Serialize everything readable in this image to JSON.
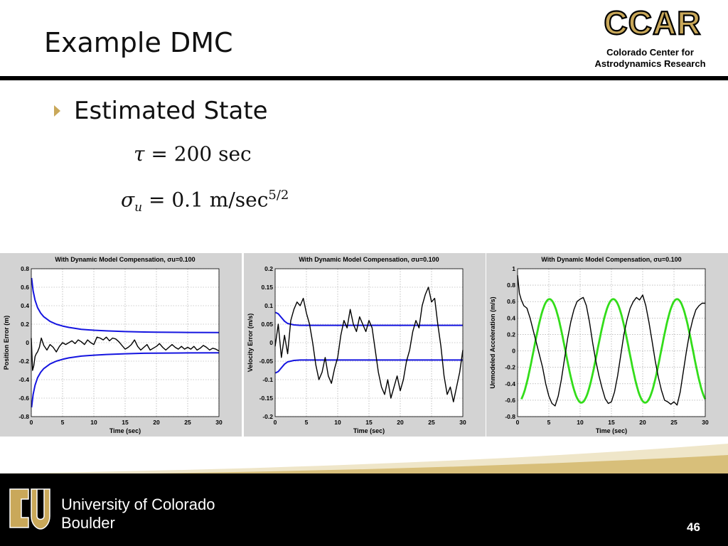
{
  "slide": {
    "title": "Example DMC",
    "bullet": "Estimated State",
    "page_number": "46"
  },
  "equations": {
    "tau": {
      "symbol": "τ",
      "rhs": "= 200 sec"
    },
    "sigma": {
      "symbol": "σ",
      "subscript": "u",
      "rhs": "= 0.1 m/sec",
      "exponent": "5/2"
    }
  },
  "header_logo": {
    "text": "CCAR",
    "line1": "Colorado Center for",
    "line2": "Astrodynamics Research"
  },
  "footer": {
    "line1": "University of Colorado",
    "line2": "Boulder"
  },
  "colors": {
    "title_rule": "#000000",
    "bullet_arrow": "#c9a85a",
    "logo_gold": "#c9a85a",
    "panel_bg": "#d3d3d3",
    "covariance_blue": "#1515e0",
    "truth_green": "#33dd1a",
    "error_black": "#000000"
  },
  "chart_data": [
    {
      "type": "line",
      "title": "With Dynamic Model Compensation,  σu=0.100",
      "xlabel": "Time (sec)",
      "ylabel": "Position Error (m)",
      "xlim": [
        0,
        30
      ],
      "ylim": [
        -0.8,
        0.8
      ],
      "xticks": [
        0,
        5,
        10,
        15,
        20,
        25,
        30
      ],
      "yticks": [
        -0.8,
        -0.6,
        -0.4,
        -0.2,
        0,
        0.2,
        0.4,
        0.6,
        0.8
      ],
      "grid": true,
      "series": [
        {
          "role": "upper-bound",
          "color": "#1515e0",
          "x": [
            0.05,
            0.3,
            0.6,
            1,
            1.5,
            2,
            3,
            4,
            5,
            6,
            8,
            10,
            12,
            15,
            18,
            20,
            25,
            30
          ],
          "y": [
            0.7,
            0.56,
            0.46,
            0.38,
            0.32,
            0.28,
            0.23,
            0.2,
            0.18,
            0.165,
            0.145,
            0.135,
            0.128,
            0.12,
            0.115,
            0.113,
            0.111,
            0.11
          ]
        },
        {
          "role": "lower-bound",
          "color": "#1515e0",
          "x": [
            0.05,
            0.3,
            0.6,
            1,
            1.5,
            2,
            3,
            4,
            5,
            6,
            8,
            10,
            12,
            15,
            18,
            20,
            25,
            30
          ],
          "y": [
            -0.7,
            -0.56,
            -0.46,
            -0.38,
            -0.32,
            -0.28,
            -0.23,
            -0.2,
            -0.18,
            -0.165,
            -0.145,
            -0.135,
            -0.128,
            -0.12,
            -0.115,
            -0.113,
            -0.111,
            -0.11
          ]
        },
        {
          "role": "estimate-error",
          "color": "#000000",
          "x": [
            0,
            0.2,
            0.4,
            0.6,
            0.8,
            1,
            1.3,
            1.6,
            2,
            2.5,
            3,
            3.5,
            4,
            4.5,
            5,
            5.5,
            6,
            6.5,
            7,
            7.5,
            8,
            8.5,
            9,
            9.5,
            10,
            10.5,
            11,
            11.5,
            12,
            12.5,
            13,
            13.5,
            14,
            14.5,
            15,
            15.5,
            16,
            16.5,
            17,
            17.5,
            18,
            18.5,
            19,
            19.5,
            20,
            20.5,
            21,
            21.5,
            22,
            22.5,
            23,
            23.5,
            24,
            24.5,
            25,
            25.5,
            26,
            26.5,
            27,
            27.5,
            28,
            28.5,
            29,
            29.5,
            30
          ],
          "y": [
            0.05,
            -0.3,
            -0.25,
            -0.15,
            -0.12,
            -0.1,
            -0.05,
            0.05,
            -0.03,
            -0.08,
            -0.02,
            -0.05,
            -0.1,
            -0.04,
            0,
            -0.02,
            0,
            0.02,
            -0.01,
            0.03,
            0.01,
            -0.02,
            0.03,
            0,
            -0.02,
            0.06,
            0.05,
            0.03,
            0.06,
            0.02,
            0.05,
            0.04,
            0.01,
            -0.03,
            -0.07,
            -0.05,
            -0.02,
            0.03,
            -0.04,
            -0.08,
            -0.05,
            -0.02,
            -0.08,
            -0.06,
            -0.04,
            -0.01,
            -0.05,
            -0.08,
            -0.05,
            -0.02,
            -0.05,
            -0.07,
            -0.04,
            -0.07,
            -0.05,
            -0.07,
            -0.04,
            -0.08,
            -0.06,
            -0.03,
            -0.05,
            -0.08,
            -0.06,
            -0.07,
            -0.09
          ]
        }
      ]
    },
    {
      "type": "line",
      "title": "With Dynamic Model Compensation,  σu=0.100",
      "xlabel": "Time (sec)",
      "ylabel": "Velocity Error (m/s)",
      "xlim": [
        0,
        30
      ],
      "ylim": [
        -0.2,
        0.2
      ],
      "xticks": [
        0,
        5,
        10,
        15,
        20,
        25,
        30
      ],
      "yticks": [
        -0.2,
        -0.15,
        -0.1,
        -0.05,
        0,
        0.05,
        0.1,
        0.15,
        0.2
      ],
      "grid": true,
      "series": [
        {
          "role": "upper-bound",
          "color": "#1515e0",
          "x": [
            0.05,
            0.5,
            1,
            1.5,
            2,
            3,
            4,
            5,
            7,
            10,
            15,
            20,
            25,
            30
          ],
          "y": [
            0.082,
            0.078,
            0.068,
            0.058,
            0.052,
            0.048,
            0.047,
            0.047,
            0.047,
            0.047,
            0.047,
            0.047,
            0.047,
            0.047
          ]
        },
        {
          "role": "lower-bound",
          "color": "#1515e0",
          "x": [
            0.05,
            0.5,
            1,
            1.5,
            2,
            3,
            4,
            5,
            7,
            10,
            15,
            20,
            25,
            30
          ],
          "y": [
            -0.082,
            -0.078,
            -0.068,
            -0.058,
            -0.052,
            -0.048,
            -0.047,
            -0.047,
            -0.047,
            -0.047,
            -0.047,
            -0.047,
            -0.047,
            -0.047
          ]
        },
        {
          "role": "estimate-error",
          "color": "#000000",
          "x": [
            0,
            0.5,
            1,
            1.5,
            2,
            2.5,
            3,
            3.5,
            4,
            4.5,
            5,
            5.5,
            6,
            6.5,
            7,
            7.5,
            8,
            8.5,
            9,
            9.5,
            10,
            10.5,
            11,
            11.5,
            12,
            12.5,
            13,
            13.5,
            14,
            14.5,
            15,
            15.5,
            16,
            16.5,
            17,
            17.5,
            18,
            18.5,
            19,
            19.5,
            20,
            20.5,
            21,
            21.5,
            22,
            22.5,
            23,
            23.5,
            24,
            24.5,
            25,
            25.5,
            26,
            26.5,
            27,
            27.5,
            28,
            28.5,
            29,
            29.5,
            30
          ],
          "y": [
            -0.01,
            0.05,
            -0.04,
            0.02,
            -0.03,
            0.06,
            0.09,
            0.11,
            0.1,
            0.12,
            0.08,
            0.05,
            0,
            -0.06,
            -0.1,
            -0.08,
            -0.04,
            -0.09,
            -0.11,
            -0.07,
            -0.04,
            0.02,
            0.06,
            0.04,
            0.09,
            0.05,
            0.03,
            0.07,
            0.05,
            0.03,
            0.06,
            0.04,
            -0.02,
            -0.08,
            -0.12,
            -0.14,
            -0.1,
            -0.15,
            -0.12,
            -0.09,
            -0.13,
            -0.1,
            -0.05,
            -0.02,
            0.03,
            0.06,
            0.04,
            0.1,
            0.13,
            0.15,
            0.11,
            0.12,
            0.05,
            -0.01,
            -0.09,
            -0.14,
            -0.12,
            -0.16,
            -0.12,
            -0.08,
            -0.02
          ]
        }
      ]
    },
    {
      "type": "line",
      "title": "With Dynamic Model Compensation,  σu=0.100",
      "xlabel": "Time (sec)",
      "ylabel": "Unmodeled Acceleration (m/s)",
      "xlim": [
        0,
        30
      ],
      "ylim": [
        -0.8,
        1
      ],
      "xticks": [
        0,
        5,
        10,
        15,
        20,
        25,
        30
      ],
      "yticks": [
        -0.8,
        -0.6,
        -0.4,
        -0.2,
        0,
        0.2,
        0.4,
        0.6,
        0.8,
        1
      ],
      "grid": true,
      "series": [
        {
          "role": "true-acceleration",
          "color": "#33dd1a",
          "amplitude": 0.63,
          "period": 10.2,
          "phase_shift": 2.55,
          "x_start": 0.6,
          "x_end": 30
        },
        {
          "role": "estimated-acceleration",
          "color": "#000000",
          "x": [
            0,
            0.3,
            0.6,
            1,
            1.5,
            2,
            2.5,
            3,
            3.5,
            4,
            4.5,
            5,
            5.5,
            6,
            6.5,
            7,
            7.5,
            8,
            8.5,
            9,
            9.5,
            10,
            10.5,
            11,
            11.5,
            12,
            12.5,
            13,
            13.5,
            14,
            14.5,
            15,
            15.5,
            16,
            16.5,
            17,
            17.5,
            18,
            18.5,
            19,
            19.5,
            20,
            20.5,
            21,
            21.5,
            22,
            22.5,
            23,
            23.5,
            24,
            24.5,
            25,
            25.5,
            26,
            26.5,
            27,
            27.5,
            28,
            28.5,
            29,
            29.5,
            30
          ],
          "y": [
            0.92,
            0.7,
            0.62,
            0.55,
            0.52,
            0.4,
            0.25,
            0.1,
            -0.05,
            -0.2,
            -0.4,
            -0.55,
            -0.64,
            -0.67,
            -0.55,
            -0.35,
            -0.1,
            0.15,
            0.35,
            0.5,
            0.6,
            0.63,
            0.65,
            0.55,
            0.35,
            0.1,
            -0.12,
            -0.3,
            -0.45,
            -0.58,
            -0.64,
            -0.62,
            -0.5,
            -0.3,
            -0.05,
            0.2,
            0.38,
            0.52,
            0.6,
            0.65,
            0.62,
            0.68,
            0.55,
            0.35,
            0.12,
            -0.12,
            -0.32,
            -0.48,
            -0.6,
            -0.62,
            -0.65,
            -0.62,
            -0.66,
            -0.5,
            -0.25,
            0,
            0.22,
            0.38,
            0.5,
            0.55,
            0.58,
            0.58
          ]
        }
      ]
    }
  ]
}
